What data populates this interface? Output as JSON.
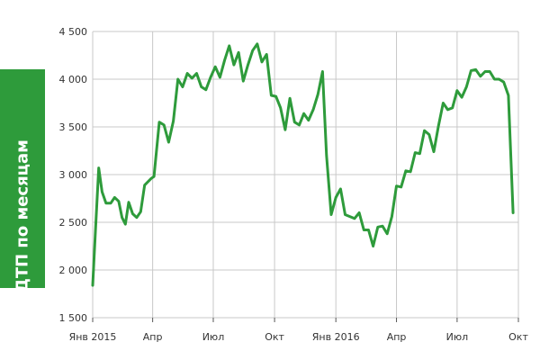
{
  "chart_data": {
    "type": "line",
    "title": "",
    "ylabel": "Число ДТП по месяцам",
    "xlabel": "",
    "ylim": [
      1500,
      4500
    ],
    "yticks": [
      1500,
      2000,
      2500,
      3000,
      3500,
      4000,
      4500
    ],
    "ytick_labels": [
      "1 500",
      "2 000",
      "2 500",
      "3 000",
      "3 500",
      "4 000",
      "4 500"
    ],
    "x_range": [
      "2015-01-01",
      "2016-10-01"
    ],
    "xticks": [
      "2015-01-01",
      "2015-04-01",
      "2015-07-01",
      "2015-10-01",
      "2016-01-01",
      "2016-04-01",
      "2016-07-01",
      "2016-10-01"
    ],
    "xtick_labels": [
      "Янв 2015",
      "Апр",
      "Июл",
      "Окт",
      "Янв 2016",
      "Апр",
      "Июл",
      "Окт"
    ],
    "grid": {
      "y": true,
      "x": true
    },
    "colors": {
      "line": "#2e9b3b",
      "grid": "#c8c8c8",
      "label_band": "#2e9b3b"
    },
    "series": [
      {
        "points": [
          [
            "2015-01-01",
            1840
          ],
          [
            "2015-01-05",
            2400
          ],
          [
            "2015-01-10",
            3070
          ],
          [
            "2015-01-15",
            2820
          ],
          [
            "2015-01-21",
            2700
          ],
          [
            "2015-01-28",
            2700
          ],
          [
            "2015-02-03",
            2760
          ],
          [
            "2015-02-09",
            2720
          ],
          [
            "2015-02-14",
            2550
          ],
          [
            "2015-02-19",
            2480
          ],
          [
            "2015-02-24",
            2710
          ],
          [
            "2015-03-02",
            2590
          ],
          [
            "2015-03-08",
            2550
          ],
          [
            "2015-03-14",
            2610
          ],
          [
            "2015-03-20",
            2890
          ],
          [
            "2015-03-30",
            2960
          ],
          [
            "2015-04-03",
            2980
          ],
          [
            "2015-04-11",
            3550
          ],
          [
            "2015-04-18",
            3520
          ],
          [
            "2015-04-25",
            3340
          ],
          [
            "2015-05-02",
            3560
          ],
          [
            "2015-05-09",
            4000
          ],
          [
            "2015-05-16",
            3920
          ],
          [
            "2015-05-23",
            4060
          ],
          [
            "2015-05-30",
            4010
          ],
          [
            "2015-06-06",
            4060
          ],
          [
            "2015-06-13",
            3920
          ],
          [
            "2015-06-20",
            3890
          ],
          [
            "2015-06-27",
            4020
          ],
          [
            "2015-07-04",
            4130
          ],
          [
            "2015-07-11",
            4020
          ],
          [
            "2015-07-18",
            4200
          ],
          [
            "2015-07-25",
            4350
          ],
          [
            "2015-08-01",
            4150
          ],
          [
            "2015-08-08",
            4280
          ],
          [
            "2015-08-15",
            3980
          ],
          [
            "2015-08-22",
            4150
          ],
          [
            "2015-08-29",
            4300
          ],
          [
            "2015-09-05",
            4370
          ],
          [
            "2015-09-12",
            4180
          ],
          [
            "2015-09-19",
            4260
          ],
          [
            "2015-09-26",
            3830
          ],
          [
            "2015-10-03",
            3820
          ],
          [
            "2015-10-10",
            3700
          ],
          [
            "2015-10-17",
            3470
          ],
          [
            "2015-10-24",
            3800
          ],
          [
            "2015-10-31",
            3550
          ],
          [
            "2015-11-07",
            3520
          ],
          [
            "2015-11-14",
            3640
          ],
          [
            "2015-11-21",
            3570
          ],
          [
            "2015-11-28",
            3680
          ],
          [
            "2015-12-05",
            3840
          ],
          [
            "2015-12-12",
            4080
          ],
          [
            "2015-12-18",
            3200
          ],
          [
            "2015-12-25",
            2580
          ],
          [
            "2016-01-01",
            2760
          ],
          [
            "2016-01-08",
            2850
          ],
          [
            "2016-01-15",
            2580
          ],
          [
            "2016-01-22",
            2560
          ],
          [
            "2016-01-29",
            2540
          ],
          [
            "2016-02-05",
            2600
          ],
          [
            "2016-02-12",
            2420
          ],
          [
            "2016-02-19",
            2420
          ],
          [
            "2016-02-26",
            2250
          ],
          [
            "2016-03-04",
            2450
          ],
          [
            "2016-03-11",
            2460
          ],
          [
            "2016-03-18",
            2380
          ],
          [
            "2016-03-25",
            2560
          ],
          [
            "2016-04-01",
            2880
          ],
          [
            "2016-04-08",
            2870
          ],
          [
            "2016-04-15",
            3040
          ],
          [
            "2016-04-22",
            3030
          ],
          [
            "2016-04-29",
            3230
          ],
          [
            "2016-05-06",
            3220
          ],
          [
            "2016-05-13",
            3460
          ],
          [
            "2016-05-20",
            3420
          ],
          [
            "2016-05-27",
            3240
          ],
          [
            "2016-06-03",
            3510
          ],
          [
            "2016-06-10",
            3750
          ],
          [
            "2016-06-17",
            3680
          ],
          [
            "2016-06-24",
            3700
          ],
          [
            "2016-07-01",
            3880
          ],
          [
            "2016-07-08",
            3810
          ],
          [
            "2016-07-15",
            3920
          ],
          [
            "2016-07-22",
            4090
          ],
          [
            "2016-07-29",
            4100
          ],
          [
            "2016-08-05",
            4030
          ],
          [
            "2016-08-12",
            4080
          ],
          [
            "2016-08-19",
            4080
          ],
          [
            "2016-08-26",
            4000
          ],
          [
            "2016-09-02",
            4000
          ],
          [
            "2016-09-09",
            3970
          ],
          [
            "2016-09-16",
            3830
          ],
          [
            "2016-09-23",
            2600
          ]
        ]
      }
    ]
  }
}
